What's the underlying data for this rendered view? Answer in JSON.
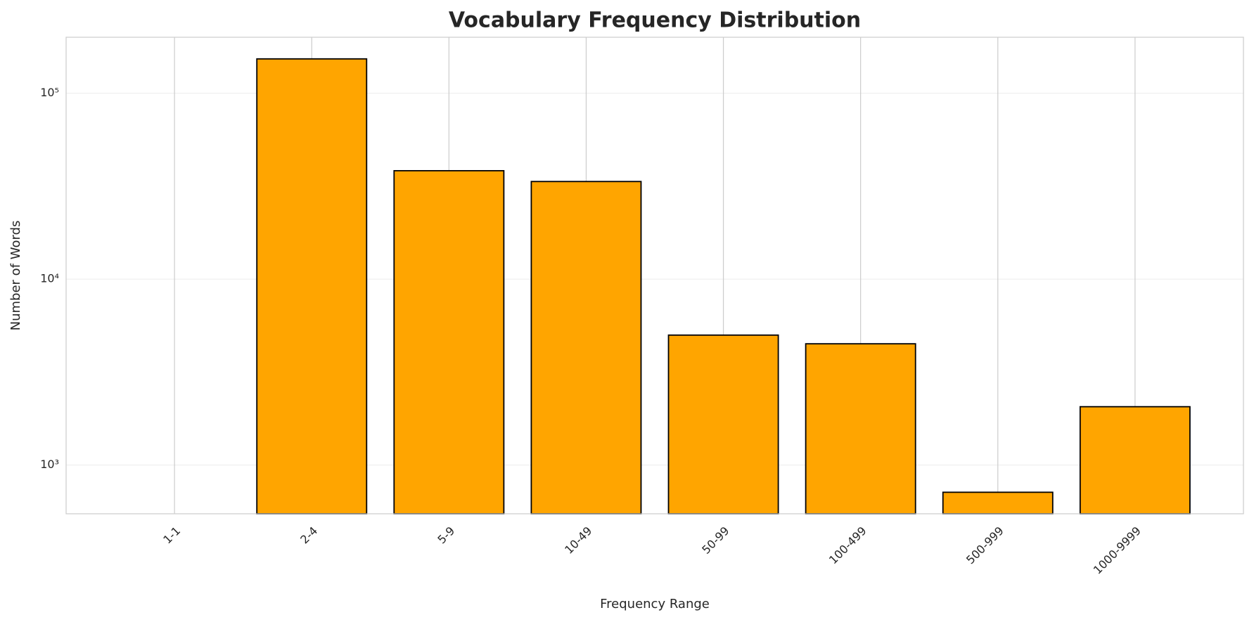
{
  "chart_data": {
    "type": "bar",
    "title": "Vocabulary Frequency Distribution",
    "x_label": "Frequency Range",
    "y_label": "Number of Words",
    "categories": [
      "1-1",
      "2-4",
      "5-9",
      "10-49",
      "50-99",
      "100-499",
      "500-999",
      "1000-9999"
    ],
    "values": [
      null,
      153000,
      38300,
      33500,
      5000,
      4490,
      714,
      2060
    ],
    "color": "#ffa500",
    "edge_color": "#000000",
    "y_scale": "log",
    "ylim": [
      547,
      200000
    ],
    "yticks": [
      {
        "value": 1000,
        "label": "10³"
      },
      {
        "value": 10000,
        "label": "10⁴"
      },
      {
        "value": 100000,
        "label": "10⁵"
      }
    ],
    "grid": true
  }
}
